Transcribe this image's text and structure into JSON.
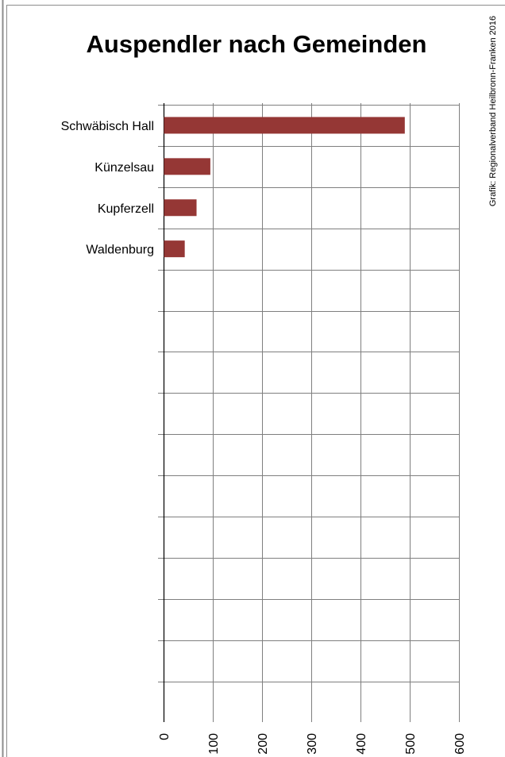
{
  "chart_data": {
    "type": "bar",
    "orientation": "horizontal",
    "title": "Auspendler nach Gemeinden",
    "categories": [
      "Schwäbisch Hall",
      "Künzelsau",
      "Kupferzell",
      "Waldenburg",
      "",
      "",
      "",
      "",
      "",
      "",
      "",
      "",
      "",
      ""
    ],
    "values": [
      490,
      95,
      67,
      43,
      null,
      null,
      null,
      null,
      null,
      null,
      null,
      null,
      null,
      null
    ],
    "xlim": [
      0,
      600
    ],
    "x_ticks": [
      "0",
      "100",
      "200",
      "300",
      "400",
      "500",
      "600"
    ],
    "tick_values": [
      0,
      100,
      200,
      300,
      400,
      500,
      600
    ],
    "grid": true,
    "bar_color": "#953735",
    "xlabel": "",
    "ylabel": ""
  },
  "credit": "Grafik: Regionalverband Heilbronn-Franken 2016",
  "colors": {
    "frame": "#8c8c8c",
    "background": "#ffffff",
    "grid": "#7f7f7f"
  }
}
